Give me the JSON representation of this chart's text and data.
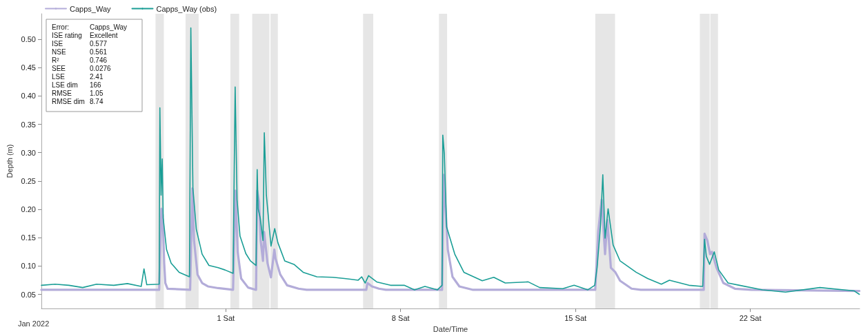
{
  "chart_data": {
    "type": "line",
    "xlabel": "Date/Time",
    "ylabel": "Depth (m)",
    "xlim": [
      "2021-12-24T14:50",
      "2022-01-26T09:00"
    ],
    "xticks": [
      {
        "value": "2022-01-01",
        "label": "1 Sat"
      },
      {
        "value": "2022-01-08",
        "label": "8 Sat"
      },
      {
        "value": "2022-01-15",
        "label": "15 Sat"
      },
      {
        "value": "2022-01-22",
        "label": "22 Sat"
      }
    ],
    "ylim": [
      0.025,
      0.545
    ],
    "yticks": [
      0.05,
      {
        "value": 0.1,
        "label": "0.10"
      },
      0.15,
      {
        "value": 0.2,
        "label": "0.20"
      },
      0.25,
      {
        "value": 0.3,
        "label": "0.30"
      },
      0.35,
      {
        "value": 0.4,
        "label": "0.40"
      },
      0.45,
      {
        "value": 0.5,
        "label": "0.50"
      }
    ],
    "grid": false,
    "legend": "top left",
    "marker": "none",
    "line_style": "solid",
    "annotations": [
      "Jan 2022",
      "Error:",
      "Capps_Way",
      "ISE rating",
      "Excellent",
      "ISE",
      "0.577",
      "NSE",
      "0.561",
      "R²",
      "0.746",
      "SEE",
      "0.0276",
      "LSE",
      "2.41",
      "LSE dim",
      "166",
      "RMSE",
      "1.05",
      "RMSE dim",
      "8.74"
    ],
    "bands": [
      {
        "axis": "x",
        "from": "2021-12-29T04:30",
        "to": "2021-12-29T12:30",
        "color": "#e6e6e6"
      },
      {
        "axis": "x",
        "from": "2021-12-30T09:20",
        "to": "2021-12-30T21:55",
        "color": "#e6e6e6"
      },
      {
        "axis": "x",
        "from": "2022-01-01T04:25",
        "to": "2022-01-01T12:50",
        "color": "#e6e6e6"
      },
      {
        "axis": "x",
        "from": "2022-01-02T01:25",
        "to": "2022-01-02T17:55",
        "color": "#e6e6e6"
      },
      {
        "axis": "x",
        "from": "2022-01-02T19:00",
        "to": "2022-01-03T02:00",
        "color": "#e6e6e6"
      },
      {
        "axis": "x",
        "from": "2022-01-06T11:55",
        "to": "2022-01-06T21:40",
        "color": "#e6e6e6"
      },
      {
        "axis": "x",
        "from": "2022-01-09T12:50",
        "to": "2022-01-09T20:40",
        "color": "#e6e6e6"
      },
      {
        "axis": "x",
        "from": "2022-01-15T19:00",
        "to": "2022-01-16T14:00",
        "color": "#e6e6e6"
      },
      {
        "axis": "x",
        "from": "2022-01-19T23:30",
        "to": "2022-01-20T08:55",
        "color": "#e6e6e6"
      },
      {
        "axis": "x",
        "from": "2022-01-20T09:35",
        "to": "2022-01-20T16:55",
        "color": "#e6e6e6"
      }
    ],
    "series": [
      {
        "name": "Capps_Way",
        "color": "#b3acd9",
        "x": [
          "2021-12-24T14:50",
          "2021-12-29T08:00",
          "2021-12-29T10:10",
          "2021-12-29T11:20",
          "2021-12-29T12:50",
          "2021-12-29T13:55",
          "2021-12-29T16:05",
          "2021-12-30T13:45",
          "2021-12-30T15:55",
          "2021-12-30T17:30",
          "2021-12-30T20:50",
          "2021-12-31T01:15",
          "2021-12-31T06:50",
          "2021-12-31T16:40",
          "2022-01-01T07:00",
          "2022-01-01T09:15",
          "2022-01-01T11:25",
          "2022-01-01T14:45",
          "2022-01-01T21:25",
          "2022-01-02T05:05",
          "2022-01-02T06:10",
          "2022-01-02T08:00",
          "2022-01-02T09:30",
          "2022-01-02T11:45",
          "2022-01-02T12:50",
          "2022-01-02T16:05",
          "2022-01-02T19:25",
          "2022-01-02T22:40",
          "2022-01-02T23:50",
          "2022-01-03T04:20",
          "2022-01-03T10:55",
          "2022-01-03T21:55",
          "2022-01-04T05:40",
          "2022-01-06T15:00",
          "2022-01-06T16:05",
          "2022-01-06T20:30",
          "2022-01-07T03:10",
          "2022-01-07T09:50",
          "2022-01-09T15:50",
          "2022-01-09T17:20",
          "2022-01-09T21:20",
          "2022-01-10T01:50",
          "2022-01-10T08:25",
          "2022-01-10T21:35",
          "2022-01-15T19:00",
          "2022-01-15T21:50",
          "2022-01-16T01:10",
          "2022-01-16T04:25",
          "2022-01-16T06:40",
          "2022-01-16T10:00",
          "2022-01-16T14:20",
          "2022-01-16T18:50",
          "2022-01-17T05:55",
          "2022-01-17T14:40",
          "2022-01-20T03:15",
          "2022-01-20T04:00",
          "2022-01-20T06:40",
          "2022-01-20T09:20",
          "2022-01-20T11:05",
          "2022-01-20T15:30",
          "2022-01-20T22:05",
          "2022-01-21T09:10",
          "2022-01-22T00:35",
          "2022-01-26T08:45"
        ],
        "values": [
          0.058,
          0.058,
          0.201,
          0.19,
          0.105,
          0.07,
          0.06,
          0.058,
          0.237,
          0.145,
          0.085,
          0.07,
          0.064,
          0.061,
          0.058,
          0.233,
          0.125,
          0.078,
          0.062,
          0.058,
          0.233,
          0.213,
          0.145,
          0.109,
          0.16,
          0.105,
          0.08,
          0.129,
          0.113,
          0.085,
          0.066,
          0.06,
          0.058,
          0.058,
          0.07,
          0.064,
          0.06,
          0.058,
          0.058,
          0.261,
          0.129,
          0.081,
          0.064,
          0.058,
          0.058,
          0.161,
          0.217,
          0.121,
          0.181,
          0.097,
          0.089,
          0.074,
          0.06,
          0.058,
          0.058,
          0.157,
          0.145,
          0.121,
          0.125,
          0.097,
          0.07,
          0.06,
          0.058,
          0.056
        ]
      },
      {
        "name": "Capps_Way (obs)",
        "color": "#1a9e96",
        "x": [
          "2021-12-24T14:50",
          "2021-12-25T04:00",
          "2021-12-25T17:20",
          "2021-12-26T06:30",
          "2021-12-26T19:50",
          "2021-12-27T12:20",
          "2021-12-28T01:30",
          "2021-12-28T14:45",
          "2021-12-28T17:25",
          "2021-12-28T20:05",
          "2021-12-29T08:00",
          "2021-12-29T08:40",
          "2021-12-29T09:50",
          "2021-12-29T10:55",
          "2021-12-29T11:50",
          "2021-12-29T15:05",
          "2021-12-29T19:30",
          "2021-12-30T03:10",
          "2021-12-30T13:05",
          "2021-12-30T14:25",
          "2021-12-30T16:25",
          "2021-12-30T19:40",
          "2021-12-31T01:15",
          "2021-12-31T07:50",
          "2021-12-31T16:40",
          "2021-12-31T23:20",
          "2022-01-01T07:00",
          "2022-01-01T09:00",
          "2022-01-01T10:50",
          "2022-01-01T13:40",
          "2022-01-01T19:15",
          "2022-01-01T23:40",
          "2022-01-02T05:05",
          "2022-01-02T06:10",
          "2022-01-02T07:05",
          "2022-01-02T09:05",
          "2022-01-02T11:45",
          "2022-01-02T13:00",
          "2022-01-02T15:00",
          "2022-01-02T19:25",
          "2022-01-02T23:00",
          "2022-01-03T02:05",
          "2022-01-03T08:40",
          "2022-01-03T17:30",
          "2022-01-04T02:20",
          "2022-01-04T15:30",
          "2022-01-05T07:00",
          "2022-01-05T18:05",
          "2022-01-06T07:15",
          "2022-01-06T10:35",
          "2022-01-06T13:55",
          "2022-01-06T17:10",
          "2022-01-07T01:00",
          "2022-01-07T14:15",
          "2022-01-08T03:25",
          "2022-01-08T13:20",
          "2022-01-08T23:20",
          "2022-01-09T11:25",
          "2022-01-09T15:50",
          "2022-01-09T16:30",
          "2022-01-09T18:00",
          "2022-01-09T20:10",
          "2022-01-10T04:00",
          "2022-01-10T12:45",
          "2022-01-11T06:25",
          "2022-01-11T17:30",
          "2022-01-12T04:30",
          "2022-01-13T02:35",
          "2022-01-13T13:35",
          "2022-01-14T11:45",
          "2022-01-14T22:40",
          "2022-01-15T11:55",
          "2022-01-15T18:30",
          "2022-01-15T20:45",
          "2022-01-16T00:05",
          "2022-01-16T02:15",
          "2022-01-16T04:25",
          "2022-01-16T07:20",
          "2022-01-16T12:10",
          "2022-01-16T18:50",
          "2022-01-17T10:15",
          "2022-01-17T21:20",
          "2022-01-18T10:30",
          "2022-01-18T18:15",
          "2022-01-19T13:00",
          "2022-01-20T02:15",
          "2022-01-20T04:00",
          "2022-01-20T05:45",
          "2022-01-20T08:50",
          "2022-01-20T13:20",
          "2022-01-20T17:40",
          "2022-01-21T02:35",
          "2022-01-21T13:35",
          "2022-01-22T11:40",
          "2022-01-23T09:45",
          "2022-01-24T18:50",
          "2022-01-26T03:55",
          "2022-01-26T08:45"
        ],
        "values": [
          0.066,
          0.068,
          0.066,
          0.062,
          0.068,
          0.066,
          0.069,
          0.064,
          0.095,
          0.067,
          0.068,
          0.379,
          0.225,
          0.289,
          0.185,
          0.129,
          0.105,
          0.089,
          0.081,
          0.52,
          0.237,
          0.165,
          0.121,
          0.101,
          0.097,
          0.093,
          0.087,
          0.416,
          0.217,
          0.153,
          0.122,
          0.109,
          0.101,
          0.27,
          0.201,
          0.185,
          0.145,
          0.335,
          0.225,
          0.135,
          0.166,
          0.141,
          0.109,
          0.103,
          0.089,
          0.081,
          0.08,
          0.078,
          0.075,
          0.081,
          0.07,
          0.083,
          0.072,
          0.066,
          0.066,
          0.058,
          0.064,
          0.058,
          0.066,
          0.331,
          0.297,
          0.169,
          0.121,
          0.089,
          0.074,
          0.08,
          0.07,
          0.072,
          0.062,
          0.06,
          0.066,
          0.058,
          0.066,
          0.097,
          0.173,
          0.261,
          0.149,
          0.201,
          0.137,
          0.109,
          0.089,
          0.078,
          0.068,
          0.075,
          0.066,
          0.064,
          0.147,
          0.117,
          0.103,
          0.125,
          0.093,
          0.07,
          0.066,
          0.058,
          0.054,
          0.062,
          0.056,
          0.05
        ]
      }
    ]
  }
}
